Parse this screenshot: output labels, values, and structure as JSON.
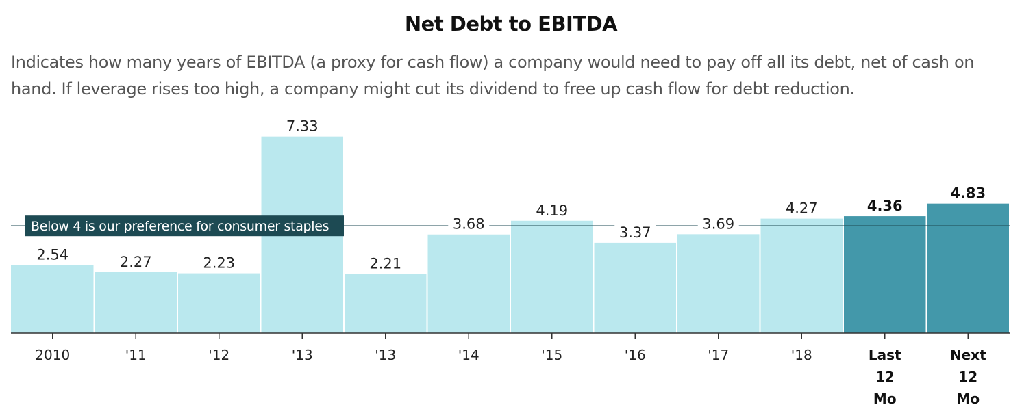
{
  "chart_data": {
    "type": "bar",
    "title": "Net Debt to EBITDA",
    "subtitle": "Indicates how many years of EBITDA (a proxy for cash flow) a company would need to pay off all its debt, net of cash on hand. If leverage rises too high, a company might cut its dividend to free up cash flow for debt reduction.",
    "categories": [
      "2010",
      "'11",
      "'12",
      "'13",
      "'13",
      "'14",
      "'15",
      "'16",
      "'17",
      "'18",
      "Last 12 Mo",
      "Next 12 Mo"
    ],
    "values": [
      2.54,
      2.27,
      2.23,
      7.33,
      2.21,
      3.68,
      4.19,
      3.37,
      3.69,
      4.27,
      4.36,
      4.83
    ],
    "value_labels": [
      "2.54",
      "2.27",
      "2.23",
      "7.33",
      "2.21",
      "3.68",
      "4.19",
      "3.37",
      "3.69",
      "4.27",
      "4.36",
      "4.83"
    ],
    "highlighted": [
      false,
      false,
      false,
      false,
      false,
      false,
      false,
      false,
      false,
      false,
      true,
      true
    ],
    "reference_line": {
      "value": 4,
      "label": "Below 4 is our preference for consumer staples"
    },
    "ylim": [
      0,
      7.8
    ],
    "grid": false,
    "xlabel": "",
    "ylabel": "",
    "colors": {
      "bar": "#bae8ee",
      "bar_highlight": "#4398aa",
      "reference": "#1d4a53",
      "axis": "#333333",
      "text": "#222222"
    }
  }
}
